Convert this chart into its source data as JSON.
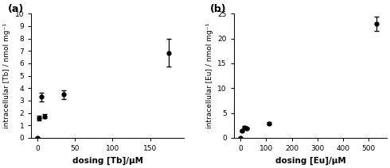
{
  "panel_a": {
    "x": [
      0,
      2,
      5,
      10,
      35,
      175
    ],
    "y": [
      0.0,
      1.6,
      3.3,
      1.75,
      3.5,
      6.85
    ],
    "yerr": [
      0.05,
      0.2,
      0.35,
      0.15,
      0.35,
      1.1
    ],
    "xlabel": "dosing [Tb]/μM",
    "ylabel": "intracellular [Tb] / nmol mg⁻¹",
    "label": "(a)",
    "xlim": [
      -8,
      195
    ],
    "ylim": [
      0,
      10
    ],
    "xticks": [
      0,
      50,
      100,
      150
    ],
    "yticks": [
      0,
      1,
      2,
      3,
      4,
      5,
      6,
      7,
      8,
      9,
      10
    ]
  },
  "panel_b": {
    "x": [
      0,
      5,
      15,
      25,
      110,
      530
    ],
    "y": [
      0.0,
      1.5,
      2.1,
      1.9,
      2.9,
      23.0
    ],
    "yerr": [
      0.05,
      0.15,
      0.3,
      0.2,
      0.25,
      1.4
    ],
    "xlabel": "dosing [Eu]/μM",
    "ylabel": "intracellular [Eu] / nmol mg⁻¹",
    "label": "(b)",
    "xlim": [
      -25,
      570
    ],
    "ylim": [
      0,
      25
    ],
    "xticks": [
      0,
      100,
      200,
      300,
      400,
      500
    ],
    "yticks": [
      0,
      5,
      10,
      15,
      20,
      25
    ]
  },
  "marker": "o",
  "markersize": 3.5,
  "color": "black",
  "elinewidth": 0.9,
  "capsize": 2.0,
  "background_color": "#ffffff",
  "tick_labelsize": 6.5,
  "xlabel_fontsize": 7.5,
  "ylabel_fontsize": 6.5,
  "label_fontsize": 9
}
